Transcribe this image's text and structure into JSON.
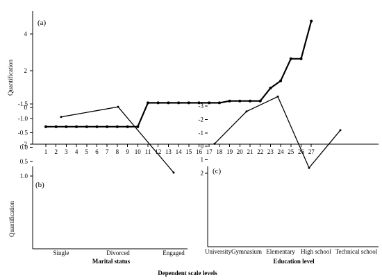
{
  "figure": {
    "footer_label": "Dependent scale levels"
  },
  "chart_data": [
    {
      "type": "line",
      "panel_label": "(a)",
      "title": "",
      "xlabel": "",
      "ylabel": "Quantification",
      "ylim": [
        -2,
        6
      ],
      "yticks": [
        -2,
        0,
        2,
        4
      ],
      "categories": [
        "1",
        "2",
        "3",
        "4",
        "5",
        "6",
        "7",
        "8",
        "9",
        "10",
        "11",
        "12",
        "13",
        "14",
        "15",
        "16",
        "17",
        "18",
        "19",
        "20",
        "21",
        "22",
        "23",
        "24",
        "25",
        "26",
        "27"
      ],
      "values": [
        -1.05,
        -1.05,
        -1.05,
        -1.05,
        -1.05,
        -1.05,
        -1.05,
        -1.05,
        -1.05,
        -1.05,
        0.25,
        0.25,
        0.25,
        0.25,
        0.25,
        0.25,
        0.25,
        0.25,
        0.35,
        0.35,
        0.35,
        0.35,
        1.05,
        1.45,
        2.65,
        2.65,
        4.7
      ],
      "grid": false,
      "legend": "none",
      "line_color": "#000000",
      "markers": true
    },
    {
      "type": "line",
      "panel_label": "(b)",
      "title": "",
      "xlabel": "Marital status",
      "ylabel": "Quantification",
      "ylim": [
        -1.5,
        1.0
      ],
      "yticks": [
        "1.0",
        "0.5",
        "0.0",
        "-0.5",
        "-1.0",
        "-1.5"
      ],
      "categories": [
        "Single",
        "Divorced",
        "Engaged"
      ],
      "values": [
        -1.05,
        -1.4,
        0.88
      ],
      "grid": false,
      "legend": "none",
      "line_color": "#000000"
    },
    {
      "type": "line",
      "panel_label": "(c)",
      "title": "",
      "xlabel": "Education level",
      "ylabel": "",
      "ylim": [
        -3,
        2
      ],
      "yticks": [
        "2",
        "1",
        "0",
        "-1",
        "-2",
        "-3"
      ],
      "categories": [
        "University",
        "Gymnasium",
        "Elementary",
        "High school",
        "Technical school"
      ],
      "values": [
        -0.2,
        -2.6,
        -3.7,
        1.6,
        -1.2
      ],
      "grid": false,
      "legend": "none",
      "line_color": "#000000"
    }
  ]
}
